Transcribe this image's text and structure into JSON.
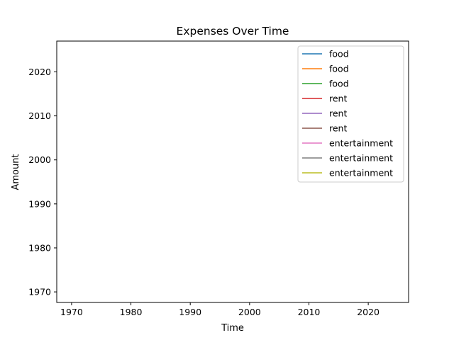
{
  "chart_data": {
    "type": "line",
    "title": "Expenses Over Time",
    "xlabel": "Time",
    "ylabel": "Amount",
    "xlim": [
      1967.5,
      2026.8
    ],
    "ylim": [
      1967.6,
      2027.0
    ],
    "xticks": [
      1970,
      1980,
      1990,
      2000,
      2010,
      2020
    ],
    "yticks": [
      1970,
      1980,
      1990,
      2000,
      2010,
      2020
    ],
    "grid": false,
    "legend_position": "top-right",
    "series": [
      {
        "name": "food",
        "color": "#1f77b4",
        "x": [],
        "y": []
      },
      {
        "name": "food",
        "color": "#ff7f0e",
        "x": [],
        "y": []
      },
      {
        "name": "food",
        "color": "#2ca02c",
        "x": [],
        "y": []
      },
      {
        "name": "rent",
        "color": "#d62728",
        "x": [],
        "y": []
      },
      {
        "name": "rent",
        "color": "#9467bd",
        "x": [],
        "y": []
      },
      {
        "name": "rent",
        "color": "#8c564b",
        "x": [],
        "y": []
      },
      {
        "name": "entertainment",
        "color": "#e377c2",
        "x": [],
        "y": []
      },
      {
        "name": "entertainment",
        "color": "#7f7f7f",
        "x": [],
        "y": []
      },
      {
        "name": "entertainment",
        "color": "#bcbd22",
        "x": [],
        "y": []
      }
    ]
  }
}
